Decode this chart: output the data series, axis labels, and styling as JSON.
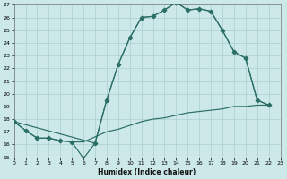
{
  "xlabel": "Humidex (Indice chaleur)",
  "bg_color": "#cce8e8",
  "grid_color": "#aacfcf",
  "line_color": "#2a6e64",
  "xlim": [
    0,
    23
  ],
  "ylim": [
    15,
    27
  ],
  "xticks": [
    0,
    1,
    2,
    3,
    4,
    5,
    6,
    7,
    8,
    9,
    10,
    11,
    12,
    13,
    14,
    15,
    16,
    17,
    18,
    19,
    20,
    21,
    22,
    23
  ],
  "yticks": [
    15,
    16,
    17,
    18,
    19,
    20,
    21,
    22,
    23,
    24,
    25,
    26,
    27
  ],
  "main_x": [
    0,
    1,
    2,
    3,
    4,
    5,
    6,
    7,
    8,
    9,
    10,
    11,
    12,
    13,
    14,
    15,
    16,
    17,
    18,
    19,
    20,
    21,
    22
  ],
  "main_y": [
    17.8,
    17.1,
    16.5,
    16.5,
    16.3,
    16.2,
    14.9,
    16.1,
    19.5,
    22.3,
    24.4,
    26.0,
    26.1,
    26.6,
    27.2,
    26.6,
    26.7,
    26.5,
    25.0,
    23.3,
    22.8,
    19.5,
    19.1
  ],
  "lower_x": [
    0,
    1,
    2,
    3,
    4,
    5,
    6,
    7,
    8,
    9,
    10,
    11,
    12,
    13,
    14,
    15,
    16,
    17,
    18,
    19,
    20,
    21,
    22
  ],
  "lower_y": [
    17.8,
    17.1,
    16.5,
    16.5,
    16.3,
    16.2,
    16.2,
    16.6,
    17.0,
    17.2,
    17.5,
    17.8,
    18.0,
    18.1,
    18.3,
    18.5,
    18.6,
    18.7,
    18.8,
    19.0,
    19.0,
    19.1,
    19.1
  ],
  "middle_x": [
    0,
    7,
    8,
    9,
    10,
    11,
    12,
    13,
    14,
    15,
    16,
    17,
    18,
    19,
    20,
    21,
    22
  ],
  "middle_y": [
    17.8,
    16.1,
    19.5,
    22.3,
    24.4,
    26.0,
    26.1,
    26.6,
    27.2,
    26.6,
    26.7,
    26.5,
    25.0,
    23.3,
    22.8,
    19.5,
    19.1
  ]
}
